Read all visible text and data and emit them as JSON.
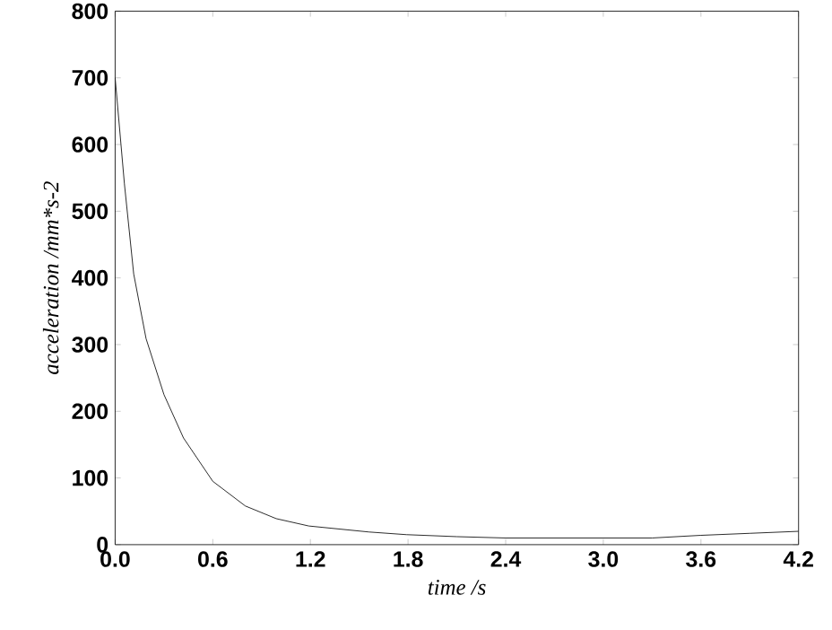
{
  "chart_data": {
    "type": "line",
    "xlabel": "time /s",
    "ylabel": "acceleration /mm*s-2",
    "xlim": [
      0,
      4.2
    ],
    "ylim": [
      0,
      800
    ],
    "xticks": [
      {
        "value": 0,
        "label": "0.0"
      },
      {
        "value": 0.6,
        "label": "0.6"
      },
      {
        "value": 1.2,
        "label": "1.2"
      },
      {
        "value": 1.8,
        "label": "1.8"
      },
      {
        "value": 2.4,
        "label": "2.4"
      },
      {
        "value": 3.0,
        "label": "3.0"
      },
      {
        "value": 3.6,
        "label": "3.6"
      },
      {
        "value": 4.2,
        "label": "4.2"
      }
    ],
    "yticks": [
      0,
      100,
      200,
      300,
      400,
      500,
      600,
      700,
      800
    ],
    "marker": "none",
    "line_style": "solid",
    "series": [
      {
        "color": "#000000",
        "x": [
          0,
          0.057,
          0.114,
          0.19,
          0.3,
          0.42,
          0.6,
          0.8,
          0.99,
          1.19,
          1.56,
          1.79,
          2.1,
          2.4,
          2.7,
          3.0,
          3.3,
          3.6,
          3.9,
          4.2
        ],
        "values": [
          700,
          541,
          406,
          309,
          225,
          160,
          95,
          58,
          39,
          28,
          19,
          15,
          12,
          10,
          10,
          10,
          10,
          14,
          17,
          20
        ]
      }
    ]
  }
}
